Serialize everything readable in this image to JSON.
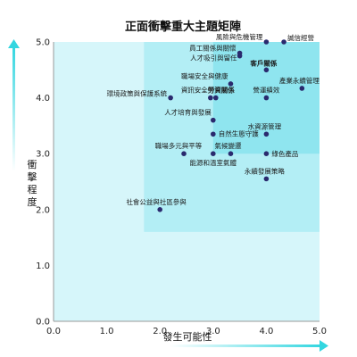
{
  "chart_data": {
    "type": "scatter",
    "title": "正面衝擊重大主題矩陣",
    "xlabel": "發生可能性",
    "ylabel": "衝擊程度",
    "xlim": [
      0,
      5
    ],
    "ylim": [
      0,
      5
    ],
    "x_ticks": [
      "0.0",
      "1.0",
      "2.0",
      "3.0",
      "4.0",
      "5.0"
    ],
    "y_ticks": [
      "0.0",
      "1.0",
      "2.0",
      "3.0",
      "4.0",
      "5.0"
    ],
    "grid": false,
    "colors": {
      "point": "#2a2a6e",
      "axis_arrow": "#33d6e0",
      "zone_light": "#d6f6fa",
      "zone_mid": "#b3eef5",
      "zone_dark": "#8fe5ef"
    },
    "points": [
      {
        "label": "風險與危機管理",
        "x": 4.0,
        "y": 5.0,
        "bold": false
      },
      {
        "label": "誠信經營",
        "x": 4.33,
        "y": 5.0,
        "bold": false
      },
      {
        "label": "員工關係與關懷",
        "x": 3.5,
        "y": 4.8,
        "bold": false
      },
      {
        "label": "人才吸引與留任",
        "x": 3.5,
        "y": 4.75,
        "bold": false
      },
      {
        "label": "客戶關係",
        "x": 4.0,
        "y": 4.5,
        "bold": true
      },
      {
        "label": "職場安全與健康",
        "x": 3.33,
        "y": 4.25,
        "bold": false
      },
      {
        "label": "產業永續管理",
        "x": 4.67,
        "y": 4.17,
        "bold": false
      },
      {
        "label": "環境政策與保護系統",
        "x": 2.2,
        "y": 4.0,
        "bold": false
      },
      {
        "label": "資訊安全",
        "x": 2.95,
        "y": 4.0,
        "bold": false
      },
      {
        "label": "勞資關係",
        "x": 3.05,
        "y": 4.0,
        "bold": true
      },
      {
        "label": "營運績效",
        "x": 4.0,
        "y": 4.0,
        "bold": false
      },
      {
        "label": "人才培育與發展",
        "x": 3.0,
        "y": 3.6,
        "bold": false
      },
      {
        "label": "水資源管理",
        "x": 4.0,
        "y": 3.35,
        "bold": false
      },
      {
        "label": "自然生態守護",
        "x": 3.0,
        "y": 3.35,
        "bold": false
      },
      {
        "label": "氣候變遷",
        "x": 3.33,
        "y": 3.0,
        "bold": false
      },
      {
        "label": "職場多元與平等",
        "x": 2.45,
        "y": 3.0,
        "bold": false
      },
      {
        "label": "綠色產品",
        "x": 4.0,
        "y": 3.0,
        "bold": false
      },
      {
        "label": "能源和溫室氣體",
        "x": 3.0,
        "y": 3.0,
        "bold": false
      },
      {
        "label": "永續發展策略",
        "x": 4.0,
        "y": 2.55,
        "bold": false
      },
      {
        "label": "社會公益與社區參與",
        "x": 2.0,
        "y": 2.0,
        "bold": false
      }
    ]
  }
}
